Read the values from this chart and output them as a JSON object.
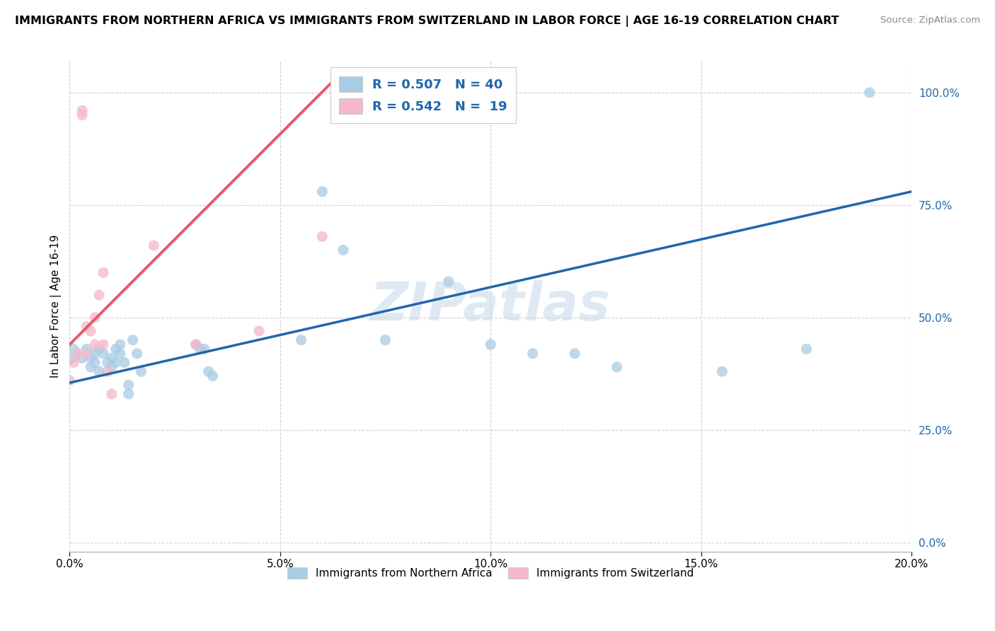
{
  "title": "IMMIGRANTS FROM NORTHERN AFRICA VS IMMIGRANTS FROM SWITZERLAND IN LABOR FORCE | AGE 16-19 CORRELATION CHART",
  "source": "Source: ZipAtlas.com",
  "ylabel": "In Labor Force | Age 16-19",
  "legend_label_blue": "Immigrants from Northern Africa",
  "legend_label_pink": "Immigrants from Switzerland",
  "R_blue": 0.507,
  "N_blue": 40,
  "R_pink": 0.542,
  "N_pink": 19,
  "xlim": [
    0.0,
    0.2
  ],
  "ylim": [
    -0.02,
    1.07
  ],
  "watermark": "ZIPatlas",
  "blue_color": "#a8cce4",
  "pink_color": "#f4b8c8",
  "trend_blue_color": "#2166ac",
  "trend_pink_color": "#e8556a",
  "blue_x": [
    0.0,
    0.003,
    0.004,
    0.005,
    0.005,
    0.006,
    0.006,
    0.007,
    0.007,
    0.008,
    0.009,
    0.01,
    0.01,
    0.011,
    0.011,
    0.012,
    0.012,
    0.013,
    0.014,
    0.014,
    0.015,
    0.016,
    0.017,
    0.03,
    0.031,
    0.032,
    0.033,
    0.034,
    0.055,
    0.06,
    0.065,
    0.075,
    0.09,
    0.1,
    0.11,
    0.12,
    0.13,
    0.155,
    0.175,
    0.19
  ],
  "blue_y": [
    0.42,
    0.41,
    0.43,
    0.39,
    0.41,
    0.42,
    0.4,
    0.38,
    0.43,
    0.42,
    0.4,
    0.39,
    0.41,
    0.43,
    0.4,
    0.44,
    0.42,
    0.4,
    0.35,
    0.33,
    0.45,
    0.42,
    0.38,
    0.44,
    0.43,
    0.43,
    0.38,
    0.37,
    0.45,
    0.78,
    0.65,
    0.45,
    0.58,
    0.44,
    0.42,
    0.42,
    0.39,
    0.38,
    0.43,
    1.0
  ],
  "pink_x": [
    0.0,
    0.001,
    0.002,
    0.003,
    0.003,
    0.004,
    0.004,
    0.005,
    0.006,
    0.006,
    0.007,
    0.008,
    0.008,
    0.009,
    0.01,
    0.02,
    0.03,
    0.045,
    0.06
  ],
  "pink_y": [
    0.36,
    0.4,
    0.42,
    0.95,
    0.96,
    0.48,
    0.42,
    0.47,
    0.44,
    0.5,
    0.55,
    0.6,
    0.44,
    0.38,
    0.33,
    0.66,
    0.44,
    0.47,
    0.68
  ],
  "blue_size": [
    500,
    120,
    120,
    120,
    120,
    120,
    120,
    120,
    120,
    120,
    120,
    120,
    120,
    120,
    120,
    120,
    120,
    120,
    120,
    120,
    120,
    120,
    120,
    120,
    120,
    120,
    120,
    120,
    120,
    120,
    120,
    120,
    120,
    120,
    120,
    120,
    120,
    120,
    120,
    120
  ],
  "yticks": [
    0.0,
    0.25,
    0.5,
    0.75,
    1.0
  ],
  "ytick_labels": [
    "0.0%",
    "25.0%",
    "50.0%",
    "75.0%",
    "100.0%"
  ],
  "xticks": [
    0.0,
    0.05,
    0.1,
    0.15,
    0.2
  ],
  "xtick_labels": [
    "0.0%",
    "5.0%",
    "10.0%",
    "15.0%",
    "20.0%"
  ],
  "grid_color": "#d0d0d0",
  "blue_trend_x0": 0.0,
  "blue_trend_x1": 0.2,
  "blue_trend_y0": 0.355,
  "blue_trend_y1": 0.78,
  "pink_trend_x0": 0.0,
  "pink_trend_x1": 0.062,
  "pink_trend_y0": 0.44,
  "pink_trend_y1": 1.02
}
